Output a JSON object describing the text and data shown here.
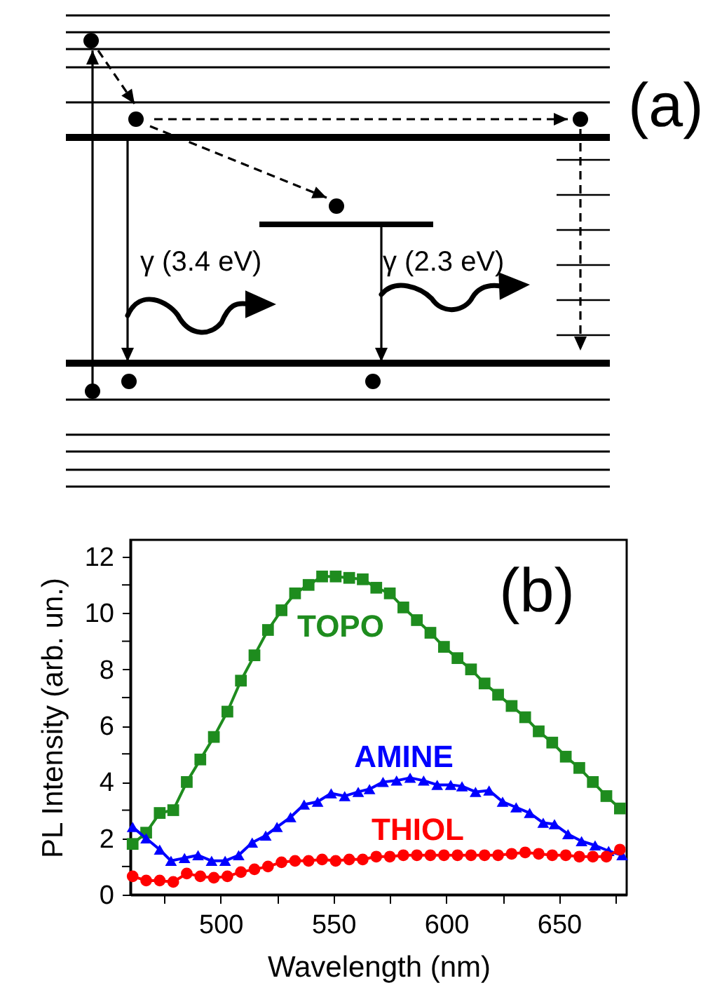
{
  "chart_data": [
    {
      "type": "other",
      "annotations": [
        "(a)",
        "γ (3.4 eV)",
        "γ (2.3 eV)"
      ]
    },
    {
      "type": "line",
      "xlabel": "Wavelength (nm)",
      "ylabel": "PL Intensity (arb. un.)",
      "annotations": [
        "(b)"
      ],
      "xlim": [
        460,
        680
      ],
      "ylim": [
        0,
        12.6
      ],
      "xticks": [
        {
          "value": 475,
          "label": null
        },
        500,
        {
          "value": 525,
          "label": null
        },
        550,
        {
          "value": 575,
          "label": null
        },
        600,
        {
          "value": 625,
          "label": null
        },
        650,
        {
          "value": 675,
          "label": null
        }
      ],
      "yticks": [
        0,
        {
          "value": 1,
          "label": null
        },
        2,
        {
          "value": 3,
          "label": null
        },
        4,
        {
          "value": 5,
          "label": null
        },
        6,
        {
          "value": 7,
          "label": null
        },
        8,
        {
          "value": 9,
          "label": null
        },
        10,
        {
          "value": 11,
          "label": null
        },
        12
      ],
      "series": [
        {
          "name": "TOPO",
          "color": "#1e8c1e",
          "marker": "square",
          "x": [
            461,
            467,
            473,
            479,
            485,
            491,
            497,
            503,
            509,
            515,
            521,
            527,
            533,
            539,
            545,
            551,
            557,
            563,
            569,
            575,
            581,
            587,
            593,
            599,
            605,
            611,
            617,
            623,
            629,
            635,
            641,
            647,
            653,
            659,
            665,
            671,
            677
          ],
          "values": [
            1.8,
            2.2,
            2.9,
            3.0,
            4.0,
            4.8,
            5.6,
            6.5,
            7.6,
            8.5,
            9.4,
            10.1,
            10.7,
            11.0,
            11.3,
            11.3,
            11.25,
            11.2,
            10.9,
            10.7,
            10.2,
            9.75,
            9.3,
            8.8,
            8.4,
            8.0,
            7.5,
            7.1,
            6.7,
            6.3,
            5.8,
            5.4,
            4.9,
            4.5,
            4.0,
            3.5,
            3.06
          ]
        },
        {
          "name": "AMINE",
          "color": "#0000ff",
          "marker": "triangle",
          "x": [
            461,
            467,
            473,
            478,
            484,
            490,
            496,
            502,
            508,
            514,
            520,
            525,
            531,
            537,
            543,
            549,
            555,
            561,
            566,
            572,
            578,
            584,
            590,
            596,
            602,
            607,
            613,
            619,
            625,
            631,
            637,
            643,
            648,
            654,
            660,
            666,
            672,
            678
          ],
          "values": [
            2.4,
            2.0,
            1.6,
            1.2,
            1.3,
            1.4,
            1.2,
            1.2,
            1.4,
            1.85,
            2.1,
            2.4,
            2.75,
            3.2,
            3.3,
            3.6,
            3.5,
            3.65,
            3.75,
            4.0,
            4.05,
            4.15,
            4.05,
            3.9,
            3.9,
            3.85,
            3.65,
            3.7,
            3.3,
            3.1,
            2.9,
            2.55,
            2.5,
            2.15,
            1.9,
            1.75,
            1.55,
            1.4
          ]
        },
        {
          "name": "THIOL",
          "color": "#ff0000",
          "marker": "circle",
          "x": [
            461,
            467,
            473,
            479,
            485,
            491,
            497,
            503,
            509,
            515,
            521,
            527,
            533,
            539,
            545,
            551,
            557,
            563,
            569,
            575,
            581,
            587,
            593,
            599,
            605,
            611,
            617,
            623,
            629,
            635,
            641,
            647,
            653,
            659,
            665,
            671,
            677
          ],
          "values": [
            0.65,
            0.5,
            0.5,
            0.45,
            0.75,
            0.65,
            0.6,
            0.65,
            0.8,
            0.9,
            1.0,
            1.15,
            1.2,
            1.2,
            1.25,
            1.2,
            1.25,
            1.25,
            1.35,
            1.35,
            1.4,
            1.4,
            1.4,
            1.4,
            1.4,
            1.4,
            1.4,
            1.4,
            1.45,
            1.5,
            1.45,
            1.4,
            1.4,
            1.35,
            1.35,
            1.35,
            1.6
          ]
        }
      ]
    }
  ]
}
